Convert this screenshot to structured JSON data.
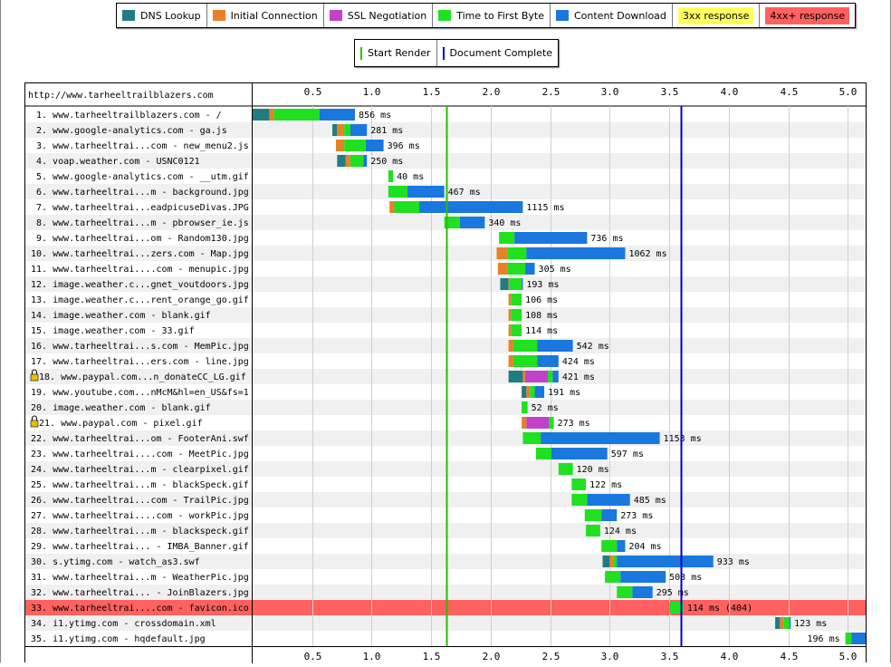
{
  "legend": {
    "items": [
      {
        "label": "DNS Lookup",
        "color": "#1f7c83"
      },
      {
        "label": "Initial Connection",
        "color": "#e58226"
      },
      {
        "label": "SSL Negotiation",
        "color": "#c141cd"
      },
      {
        "label": "Time to First Byte",
        "color": "#1fe11f"
      },
      {
        "label": "Content Download",
        "color": "#1977dd"
      },
      {
        "label": "3xx response",
        "color": "#ffff60"
      },
      {
        "label": "4xx+ response",
        "color": "#ff6060"
      }
    ],
    "lines": [
      {
        "label": "Start Render",
        "color": "#28bc00"
      },
      {
        "label": "Document Complete",
        "color": "#0000cc"
      }
    ]
  },
  "chart_data": {
    "type": "waterfall",
    "page_url": "http://www.tarheeltrailblazers.com",
    "x_ticks": [
      "0.5",
      "1.0",
      "1.5",
      "2.0",
      "2.5",
      "3.0",
      "3.5",
      "4.0",
      "4.5",
      "5.0"
    ],
    "xlim": [
      0,
      5.15
    ],
    "start_render": 1.63,
    "document_complete": 3.6,
    "requests": [
      {
        "label": "1. www.tarheeltrailblazers.com - /",
        "start": 0.0,
        "dns": 0.14,
        "connect": 0.04,
        "ssl": 0,
        "ttfb": 0.38,
        "download": 0.3,
        "ms_label": "856 ms",
        "lock": false,
        "status": ""
      },
      {
        "label": "2. www.google-analytics.com - ga.js",
        "start": 0.67,
        "dns": 0.04,
        "connect": 0.06,
        "ssl": 0,
        "ttfb": 0.05,
        "download": 0.14,
        "ms_label": "281 ms",
        "lock": false,
        "status": ""
      },
      {
        "label": "3. www.tarheeltrai...com - new_menu2.js",
        "start": 0.7,
        "dns": 0,
        "connect": 0.07,
        "ssl": 0,
        "ttfb": 0.18,
        "download": 0.15,
        "ms_label": "396 ms",
        "lock": false,
        "status": ""
      },
      {
        "label": "4. voap.weather.com - USNC0121",
        "start": 0.71,
        "dns": 0.07,
        "connect": 0.04,
        "ssl": 0,
        "ttfb": 0.11,
        "download": 0.03,
        "ms_label": "250 ms",
        "lock": false,
        "status": ""
      },
      {
        "label": "5. www.google-analytics.com - __utm.gif",
        "start": 1.14,
        "dns": 0,
        "connect": 0,
        "ssl": 0,
        "ttfb": 0.04,
        "download": 0.0,
        "ms_label": "40 ms",
        "lock": false,
        "status": ""
      },
      {
        "label": "6. www.tarheeltrai...m - background.jpg",
        "start": 1.14,
        "dns": 0,
        "connect": 0,
        "ssl": 0,
        "ttfb": 0.16,
        "download": 0.31,
        "ms_label": "467 ms",
        "lock": false,
        "status": ""
      },
      {
        "label": "7. www.tarheeltrai...eadpicuseDivas.JPG",
        "start": 1.15,
        "dns": 0,
        "connect": 0.04,
        "ssl": 0,
        "ttfb": 0.21,
        "download": 0.87,
        "ms_label": "1115 ms",
        "lock": false,
        "status": ""
      },
      {
        "label": "8. www.tarheeltrai...m - pbrowser_ie.js",
        "start": 1.61,
        "dns": 0,
        "connect": 0,
        "ssl": 0,
        "ttfb": 0.13,
        "download": 0.21,
        "ms_label": "340 ms",
        "lock": false,
        "status": ""
      },
      {
        "label": "9. www.tarheeltrai...om - Random130.jpg",
        "start": 2.07,
        "dns": 0,
        "connect": 0,
        "ssl": 0,
        "ttfb": 0.13,
        "download": 0.61,
        "ms_label": "736 ms",
        "lock": false,
        "status": ""
      },
      {
        "label": "10. www.tarheeltrai...zers.com - Map.jpg",
        "start": 2.05,
        "dns": 0,
        "connect": 0.09,
        "ssl": 0,
        "ttfb": 0.16,
        "download": 0.83,
        "ms_label": "1062 ms",
        "lock": false,
        "status": ""
      },
      {
        "label": "11. www.tarheeltrai....com - menupic.jpg",
        "start": 2.06,
        "dns": 0,
        "connect": 0.08,
        "ssl": 0,
        "ttfb": 0.15,
        "download": 0.08,
        "ms_label": "305 ms",
        "lock": false,
        "status": ""
      },
      {
        "label": "12. image.weather.c...gnet_voutdoors.jpg",
        "start": 2.08,
        "dns": 0.07,
        "connect": 0.01,
        "ssl": 0,
        "ttfb": 0.1,
        "download": 0.01,
        "ms_label": "193 ms",
        "lock": false,
        "status": ""
      },
      {
        "label": "13. image.weather.c...rent_orange_go.gif",
        "start": 2.15,
        "dns": 0,
        "connect": 0.02,
        "ssl": 0,
        "ttfb": 0.09,
        "download": 0.0,
        "ms_label": "106 ms",
        "lock": false,
        "status": ""
      },
      {
        "label": "14. image.weather.com - blank.gif",
        "start": 2.15,
        "dns": 0,
        "connect": 0.02,
        "ssl": 0,
        "ttfb": 0.09,
        "download": 0.0,
        "ms_label": "108 ms",
        "lock": false,
        "status": ""
      },
      {
        "label": "15. image.weather.com - 33.gif",
        "start": 2.15,
        "dns": 0,
        "connect": 0.02,
        "ssl": 0,
        "ttfb": 0.09,
        "download": 0.0,
        "ms_label": "114 ms",
        "lock": false,
        "status": ""
      },
      {
        "label": "16. www.tarheeltrai...s.com - MemPic.jpg",
        "start": 2.15,
        "dns": 0,
        "connect": 0.04,
        "ssl": 0,
        "ttfb": 0.2,
        "download": 0.3,
        "ms_label": "542 ms",
        "lock": false,
        "status": ""
      },
      {
        "label": "17. www.tarheeltrai...ers.com - line.jpg",
        "start": 2.15,
        "dns": 0,
        "connect": 0.04,
        "ssl": 0,
        "ttfb": 0.2,
        "download": 0.18,
        "ms_label": "424 ms",
        "lock": false,
        "status": ""
      },
      {
        "label": "18. www.paypal.com...n_donateCC_LG.gif",
        "start": 2.15,
        "dns": 0.12,
        "connect": 0.02,
        "ssl": 0.19,
        "ttfb": 0.04,
        "download": 0.05,
        "ms_label": "421 ms",
        "lock": true,
        "status": ""
      },
      {
        "label": "19. www.youtube.com...nMcM&hl=en_US&fs=1",
        "start": 2.26,
        "dns": 0.04,
        "connect": 0.03,
        "ssl": 0,
        "ttfb": 0.04,
        "download": 0.08,
        "ms_label": "191 ms",
        "lock": false,
        "status": ""
      },
      {
        "label": "20. image.weather.com - blank.gif",
        "start": 2.26,
        "dns": 0,
        "connect": 0,
        "ssl": 0,
        "ttfb": 0.05,
        "download": 0.0,
        "ms_label": "52 ms",
        "lock": false,
        "status": ""
      },
      {
        "label": "21. www.paypal.com - pixel.gif",
        "start": 2.26,
        "dns": 0,
        "connect": 0.04,
        "ssl": 0.19,
        "ttfb": 0.04,
        "download": 0.0,
        "ms_label": "273 ms",
        "lock": true,
        "status": ""
      },
      {
        "label": "22. www.tarheeltrai...om - FooterAni.swf",
        "start": 2.27,
        "dns": 0,
        "connect": 0,
        "ssl": 0,
        "ttfb": 0.15,
        "download": 1.0,
        "ms_label": "1153 ms",
        "lock": false,
        "status": ""
      },
      {
        "label": "23. www.tarheeltrai....com - MeetPic.jpg",
        "start": 2.38,
        "dns": 0,
        "connect": 0,
        "ssl": 0,
        "ttfb": 0.13,
        "download": 0.47,
        "ms_label": "597 ms",
        "lock": false,
        "status": ""
      },
      {
        "label": "24. www.tarheeltrai...m - clearpixel.gif",
        "start": 2.57,
        "dns": 0,
        "connect": 0,
        "ssl": 0,
        "ttfb": 0.12,
        "download": 0.0,
        "ms_label": "120 ms",
        "lock": false,
        "status": ""
      },
      {
        "label": "25. www.tarheeltrai...m - blackSpeck.gif",
        "start": 2.68,
        "dns": 0,
        "connect": 0,
        "ssl": 0,
        "ttfb": 0.12,
        "download": 0.0,
        "ms_label": "122 ms",
        "lock": false,
        "status": ""
      },
      {
        "label": "26. www.tarheeltrai...com - TrailPic.jpg",
        "start": 2.68,
        "dns": 0,
        "connect": 0,
        "ssl": 0,
        "ttfb": 0.13,
        "download": 0.36,
        "ms_label": "485 ms",
        "lock": false,
        "status": ""
      },
      {
        "label": "27. www.tarheeltrai....com - workPic.jpg",
        "start": 2.79,
        "dns": 0,
        "connect": 0,
        "ssl": 0,
        "ttfb": 0.14,
        "download": 0.13,
        "ms_label": "273 ms",
        "lock": false,
        "status": ""
      },
      {
        "label": "28. www.tarheeltrai...m - blackspeck.gif",
        "start": 2.8,
        "dns": 0,
        "connect": 0,
        "ssl": 0,
        "ttfb": 0.12,
        "download": 0.0,
        "ms_label": "124 ms",
        "lock": false,
        "status": ""
      },
      {
        "label": "29. www.tarheeltrai... - IMBA_Banner.gif",
        "start": 2.93,
        "dns": 0,
        "connect": 0,
        "ssl": 0,
        "ttfb": 0.13,
        "download": 0.07,
        "ms_label": "204 ms",
        "lock": false,
        "status": ""
      },
      {
        "label": "30. s.ytimg.com - watch_as3.swf",
        "start": 2.94,
        "dns": 0.06,
        "connect": 0.03,
        "ssl": 0,
        "ttfb": 0.03,
        "download": 0.81,
        "ms_label": "933 ms",
        "lock": false,
        "status": ""
      },
      {
        "label": "31. www.tarheeltrai...m - WeatherPic.jpg",
        "start": 2.96,
        "dns": 0,
        "connect": 0,
        "ssl": 0,
        "ttfb": 0.13,
        "download": 0.38,
        "ms_label": "503 ms",
        "lock": false,
        "status": ""
      },
      {
        "label": "32. www.tarheeltrai... - JoinBlazers.jpg",
        "start": 3.06,
        "dns": 0,
        "connect": 0,
        "ssl": 0,
        "ttfb": 0.13,
        "download": 0.17,
        "ms_label": "295 ms",
        "lock": false,
        "status": ""
      },
      {
        "label": "33. www.tarheeltrai....com - favicon.ico",
        "start": 3.5,
        "dns": 0,
        "connect": 0,
        "ssl": 0,
        "ttfb": 0.12,
        "download": 0.0,
        "ms_label": "114 ms (404)",
        "lock": false,
        "status": "4xx"
      },
      {
        "label": "34. i1.ytimg.com - crossdomain.xml",
        "start": 4.39,
        "dns": 0.04,
        "connect": 0.03,
        "ssl": 0,
        "ttfb": 0.05,
        "download": 0.01,
        "ms_label": "123 ms",
        "lock": false,
        "status": ""
      },
      {
        "label": "35. i1.ytimg.com - hqdefault.jpg",
        "start": 4.98,
        "dns": 0,
        "connect": 0,
        "ssl": 0,
        "ttfb": 0.05,
        "download": 0.15,
        "ms_label": "196 ms",
        "lock": false,
        "status": ""
      }
    ]
  }
}
